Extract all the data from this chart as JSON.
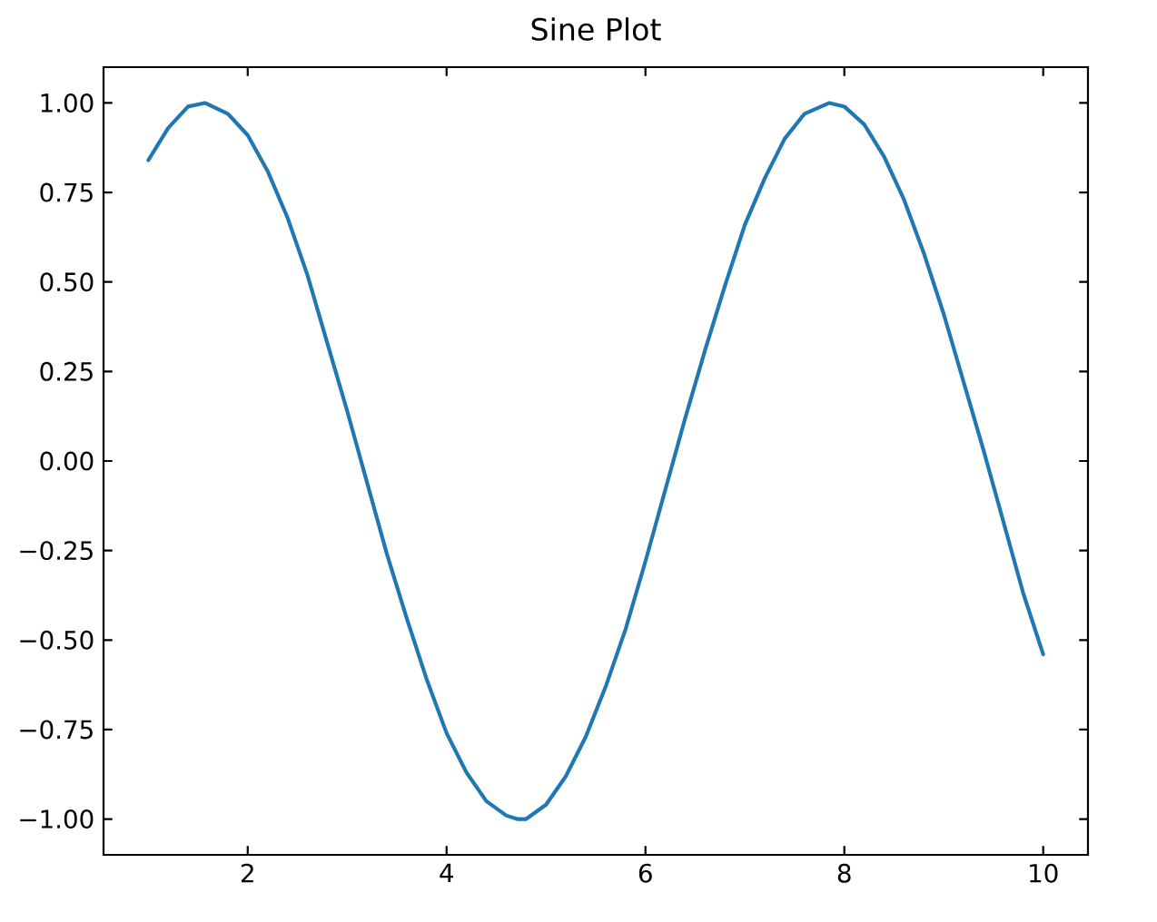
{
  "chart_data": {
    "type": "line",
    "title": "Sine Plot",
    "x": [
      1.0,
      1.2,
      1.4,
      1.57,
      1.8,
      2.0,
      2.2,
      2.4,
      2.6,
      2.8,
      3.0,
      3.2,
      3.4,
      3.6,
      3.8,
      4.0,
      4.2,
      4.4,
      4.6,
      4.71,
      4.8,
      5.0,
      5.2,
      5.4,
      5.6,
      5.8,
      6.0,
      6.2,
      6.4,
      6.6,
      6.8,
      7.0,
      7.2,
      7.4,
      7.6,
      7.85,
      8.0,
      8.2,
      8.4,
      8.6,
      8.8,
      9.0,
      9.2,
      9.4,
      9.6,
      9.8,
      10.0
    ],
    "series": [
      {
        "color": "#1f77b4",
        "values": [
          0.84,
          0.93,
          0.99,
          1.0,
          0.97,
          0.91,
          0.81,
          0.68,
          0.52,
          0.33,
          0.14,
          -0.06,
          -0.26,
          -0.44,
          -0.61,
          -0.76,
          -0.87,
          -0.95,
          -0.99,
          -1.0,
          -1.0,
          -0.96,
          -0.88,
          -0.77,
          -0.63,
          -0.47,
          -0.28,
          -0.08,
          0.12,
          0.31,
          0.49,
          0.66,
          0.79,
          0.9,
          0.97,
          1.0,
          0.99,
          0.94,
          0.85,
          0.73,
          0.58,
          0.41,
          0.22,
          0.03,
          -0.17,
          -0.37,
          -0.54
        ]
      }
    ],
    "xlim": [
      0.55,
      10.45
    ],
    "ylim": [
      -1.1,
      1.1
    ],
    "xticks": [
      2,
      4,
      6,
      8,
      10
    ],
    "yticks": [
      {
        "value": -1,
        "label": "−1.00"
      },
      {
        "value": -0.75,
        "label": "−0.75"
      },
      {
        "value": -0.5,
        "label": "−0.50"
      },
      {
        "value": -0.25,
        "label": "−0.25"
      },
      {
        "value": 0,
        "label": "0.00"
      },
      {
        "value": 0.25,
        "label": "0.25"
      },
      {
        "value": 0.5,
        "label": "0.50"
      },
      {
        "value": 0.75,
        "label": "0.75"
      },
      {
        "value": 1,
        "label": "1.00"
      }
    ],
    "line_style": "solid"
  }
}
